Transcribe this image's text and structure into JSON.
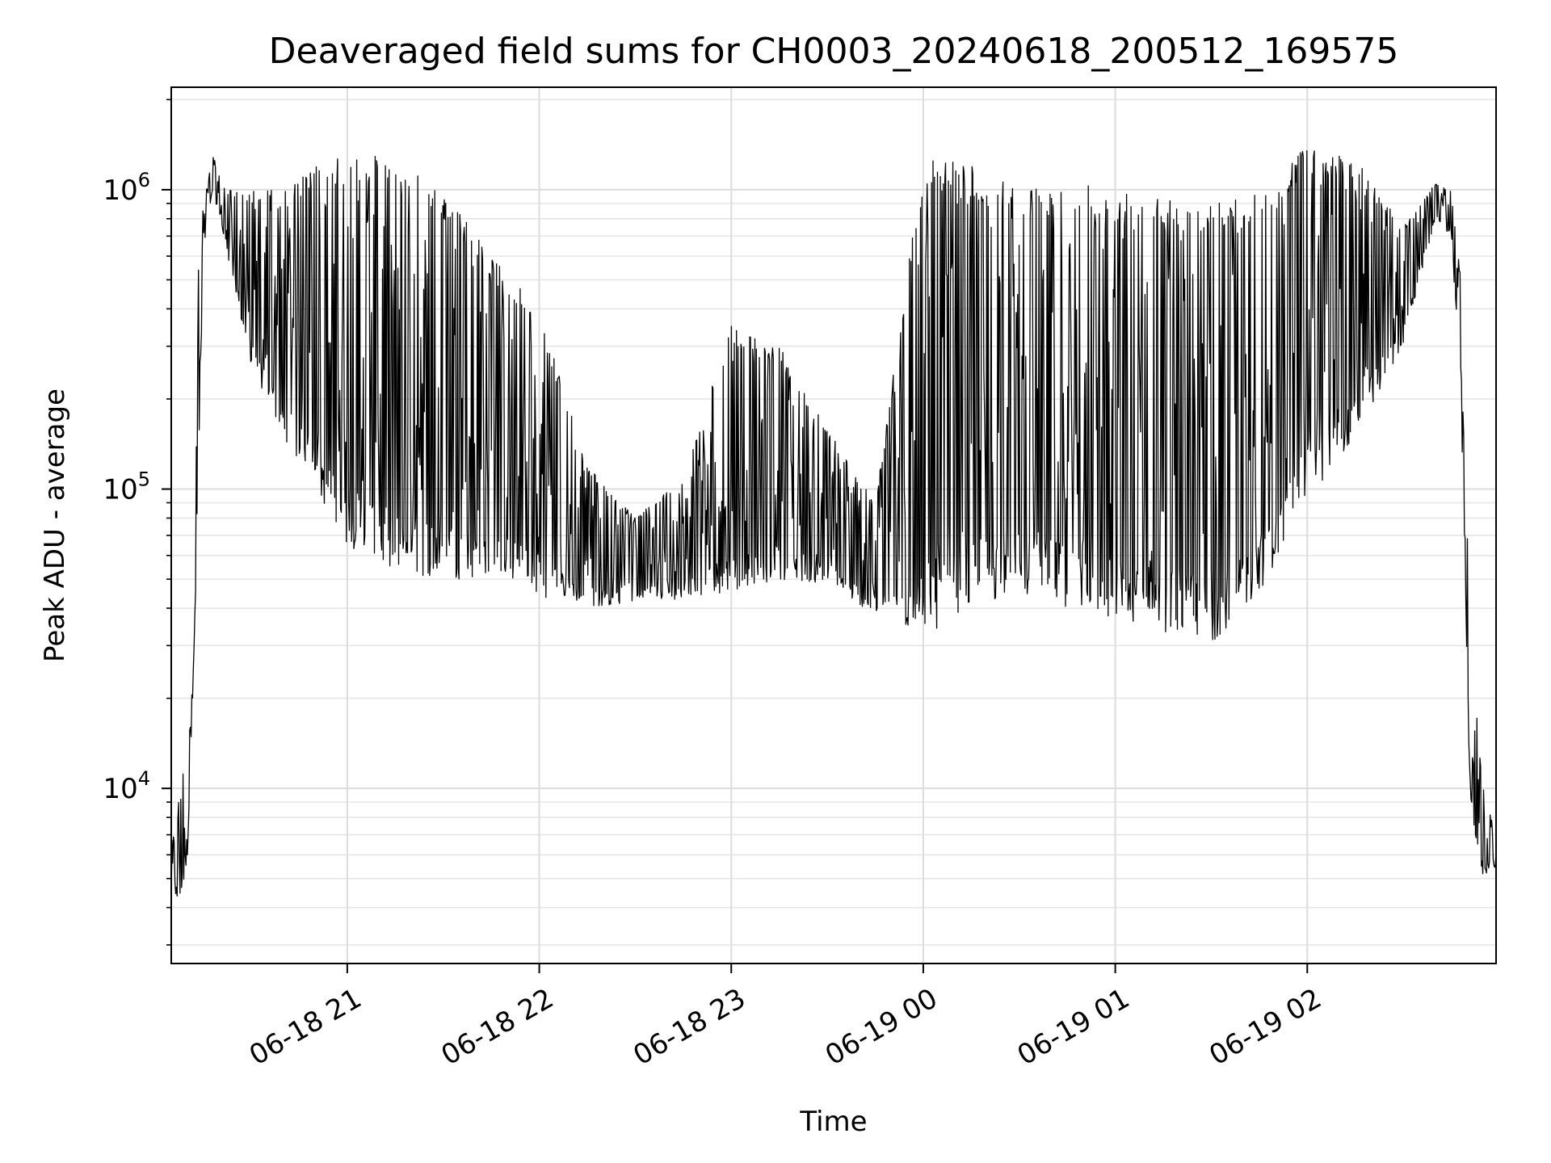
{
  "chart_data": {
    "type": "line",
    "title": "Deaveraged field sums for CH0003_20240618_200512_169575",
    "xlabel": "Time",
    "ylabel": "Peak ADU - average",
    "yscale": "log",
    "ylim": [
      2600,
      2200000
    ],
    "xlim": [
      "06-18 20:05",
      "06-19 02:59"
    ],
    "grid": true,
    "line_color": "#000000",
    "x_ticks": [
      {
        "t": "06-18 21:00",
        "label": "06-18 21"
      },
      {
        "t": "06-18 22:00",
        "label": "06-18 22"
      },
      {
        "t": "06-18 23:00",
        "label": "06-18 23"
      },
      {
        "t": "06-19 00:00",
        "label": "06-19 00"
      },
      {
        "t": "06-19 01:00",
        "label": "06-19 01"
      },
      {
        "t": "06-19 02:00",
        "label": "06-19 02"
      }
    ],
    "y_ticks": [
      {
        "value": 10000,
        "base": "10",
        "exp": "4"
      },
      {
        "value": 100000,
        "base": "10",
        "exp": "5"
      },
      {
        "value": 1000000,
        "base": "10",
        "exp": "6"
      }
    ],
    "series": [
      {
        "envelope": [
          {
            "t": "06-18 20:05",
            "low": 3500,
            "high": 6500
          },
          {
            "t": "06-18 20:10",
            "low": 5000,
            "high": 14000
          },
          {
            "t": "06-18 20:13",
            "low": 60000,
            "high": 500000
          },
          {
            "t": "06-18 20:15",
            "low": 600000,
            "high": 900000
          },
          {
            "t": "06-18 20:18",
            "low": 1000000,
            "high": 1300000
          },
          {
            "t": "06-18 20:22",
            "low": 650000,
            "high": 1000000
          },
          {
            "t": "06-18 20:30",
            "low": 250000,
            "high": 1000000
          },
          {
            "t": "06-18 20:40",
            "low": 150000,
            "high": 1000000
          },
          {
            "t": "06-18 20:50",
            "low": 100000,
            "high": 1200000
          },
          {
            "t": "06-18 21:00",
            "low": 65000,
            "high": 1300000
          },
          {
            "t": "06-18 21:15",
            "low": 52000,
            "high": 1300000
          },
          {
            "t": "06-18 21:30",
            "low": 50000,
            "high": 1000000
          },
          {
            "t": "06-18 21:45",
            "low": 50000,
            "high": 600000
          },
          {
            "t": "06-18 22:00",
            "low": 44000,
            "high": 400000
          },
          {
            "t": "06-18 22:15",
            "low": 40000,
            "high": 120000
          },
          {
            "t": "06-18 22:30",
            "low": 42000,
            "high": 80000
          },
          {
            "t": "06-18 22:45",
            "low": 43000,
            "high": 110000
          },
          {
            "t": "06-18 23:00",
            "low": 45000,
            "high": 350000
          },
          {
            "t": "06-18 23:15",
            "low": 50000,
            "high": 300000
          },
          {
            "t": "06-18 23:30",
            "low": 48000,
            "high": 160000
          },
          {
            "t": "06-18 23:45",
            "low": 38000,
            "high": 90000
          },
          {
            "t": "06-19 00:00",
            "low": 32000,
            "high": 1300000
          },
          {
            "t": "06-19 00:15",
            "low": 40000,
            "high": 1200000
          },
          {
            "t": "06-19 00:30",
            "low": 45000,
            "high": 1000000
          },
          {
            "t": "06-19 00:45",
            "low": 40000,
            "high": 1100000
          },
          {
            "t": "06-19 01:00",
            "low": 35000,
            "high": 1000000
          },
          {
            "t": "06-19 01:15",
            "low": 33000,
            "high": 1000000
          },
          {
            "t": "06-19 01:30",
            "low": 30000,
            "high": 900000
          },
          {
            "t": "06-19 01:45",
            "low": 45000,
            "high": 1000000
          },
          {
            "t": "06-19 02:00",
            "low": 90000,
            "high": 1400000
          },
          {
            "t": "06-19 02:15",
            "low": 150000,
            "high": 1300000
          },
          {
            "t": "06-19 02:30",
            "low": 300000,
            "high": 750000
          },
          {
            "t": "06-19 02:40",
            "low": 800000,
            "high": 1050000
          },
          {
            "t": "06-19 02:45",
            "low": 700000,
            "high": 1000000
          },
          {
            "t": "06-19 02:48",
            "low": 200000,
            "high": 500000
          },
          {
            "t": "06-19 02:51",
            "low": 8000,
            "high": 30000
          },
          {
            "t": "06-19 02:55",
            "low": 5000,
            "high": 10000
          },
          {
            "t": "06-19 02:59",
            "low": 5500,
            "high": 7000
          }
        ]
      }
    ]
  }
}
